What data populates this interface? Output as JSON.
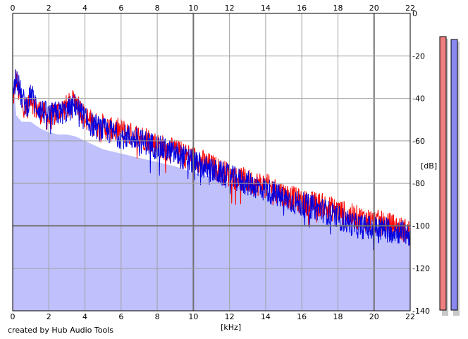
{
  "chart_data": {
    "type": "area",
    "title": "",
    "xlabel": "[kHz]",
    "ylabel": "[dB]",
    "xlim": [
      0,
      22
    ],
    "ylim": [
      -140,
      0
    ],
    "x_ticks": [
      "0",
      "2",
      "4",
      "6",
      "8",
      "10",
      "12",
      "14",
      "16",
      "18",
      "20",
      "22"
    ],
    "y_ticks": [
      "0",
      "-20",
      "-40",
      "-60",
      "-80",
      "-100",
      "-120",
      "-140"
    ],
    "grid": true,
    "legend": "none",
    "fill": {
      "color": "#c0c0fc",
      "x": [
        0,
        0.1,
        0.2,
        0.5,
        1,
        1.5,
        2,
        2.5,
        3,
        3.5,
        4,
        4.5,
        5,
        5.5,
        6,
        7,
        8,
        9,
        10,
        11,
        12,
        13,
        14,
        15,
        16,
        17,
        18,
        19,
        20,
        21,
        22
      ],
      "y": [
        -45,
        -38,
        -48,
        -51,
        -51,
        -54,
        -56,
        -57,
        -57,
        -58,
        -60,
        -62,
        -64,
        -65,
        -66,
        -68,
        -70,
        -72,
        -75,
        -77,
        -80,
        -82,
        -84,
        -87,
        -90,
        -93,
        -96,
        -98,
        -99,
        -100,
        -101
      ]
    },
    "series": [
      {
        "color": "#ff0000",
        "x": [
          0,
          0.1,
          0.2,
          0.3,
          0.5,
          0.8,
          1,
          1.2,
          1.5,
          1.8,
          2,
          2.5,
          3,
          3.5,
          4,
          4.5,
          5,
          5.5,
          6,
          6.5,
          7,
          7.5,
          8,
          9,
          10,
          11,
          12,
          13,
          14,
          15,
          16,
          17,
          18,
          19,
          20,
          21,
          22
        ],
        "y": [
          -42,
          -36,
          -30,
          -36,
          -42,
          -45,
          -38,
          -44,
          -46,
          -48,
          -50,
          -46,
          -44,
          -41,
          -49,
          -52,
          -53,
          -55,
          -55,
          -57,
          -58,
          -59,
          -62,
          -65,
          -68,
          -72,
          -76,
          -79,
          -81,
          -85,
          -89,
          -90,
          -93,
          -96,
          -98,
          -100,
          -103
        ]
      },
      {
        "color": "#0000e0",
        "x": [
          0,
          0.1,
          0.2,
          0.3,
          0.5,
          0.8,
          1,
          1.2,
          1.5,
          1.8,
          2,
          2.5,
          3,
          3.5,
          4,
          4.5,
          5,
          5.5,
          6,
          6.5,
          7,
          7.5,
          8,
          9,
          10,
          11,
          12,
          13,
          14,
          15,
          16,
          17,
          18,
          19,
          20,
          21,
          22
        ],
        "y": [
          -40,
          -34,
          -27,
          -33,
          -40,
          -44,
          -37,
          -42,
          -45,
          -47,
          -48,
          -47,
          -46,
          -43,
          -50,
          -53,
          -55,
          -56,
          -58,
          -58,
          -60,
          -61,
          -63,
          -66,
          -70,
          -74,
          -77,
          -80,
          -83,
          -87,
          -90,
          -92,
          -96,
          -100,
          -101,
          -102,
          -104
        ]
      }
    ],
    "level_meters": [
      {
        "color": "#f08080",
        "level_db": -10
      },
      {
        "color": "#8888f0",
        "level_db": -12
      }
    ]
  },
  "credit": "created by Hub Audio Tools"
}
